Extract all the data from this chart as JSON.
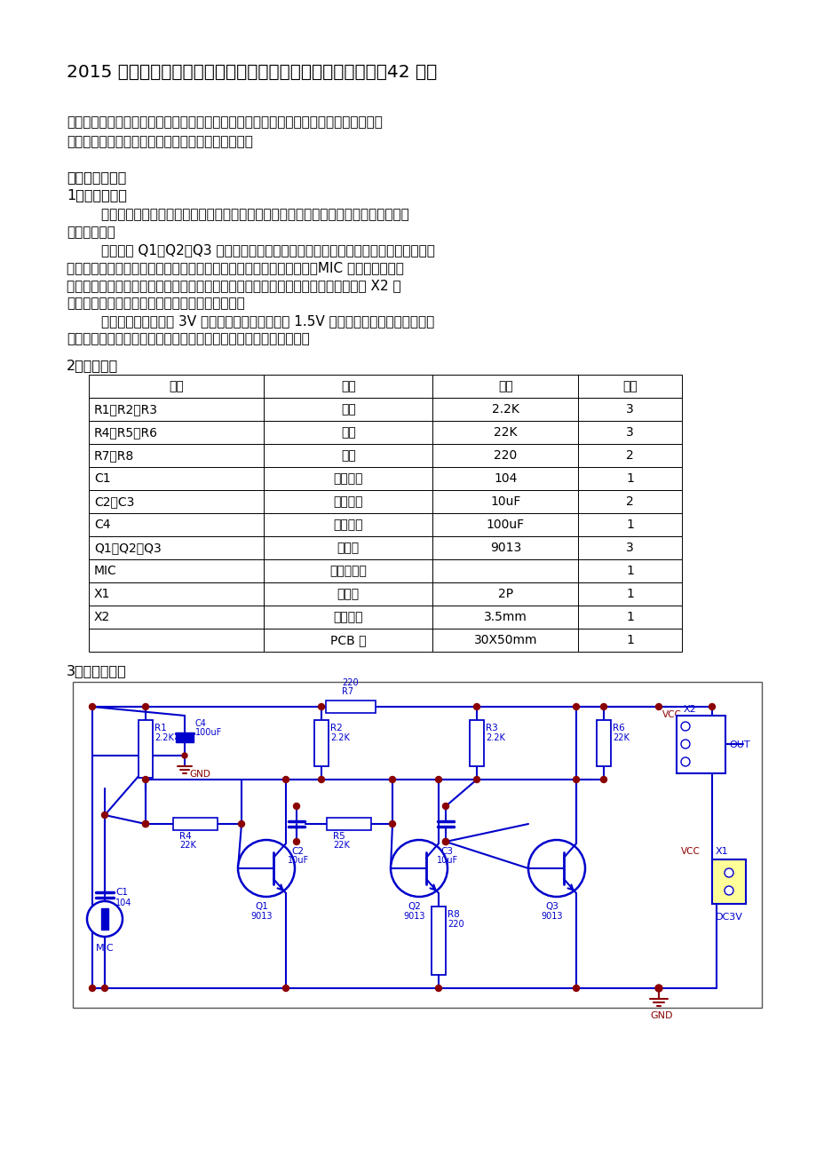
{
  "title": "2015 年《模拟电子技术》课程单元电路设计与制作参考电路（42 个）",
  "req_line1": "要求：按照下面提供的电路图，工作原理说明，元器件清单设计及制作单元电路，然后测",
  "req_line2": "试单元电路的性能，撰写单元电路设计与制作报告。",
  "sec1": "一、多级放大器",
  "sub1": "1、电路说明：",
  "p1a": "        多级放大器电路是把若干个单管放大电路串接起来，把信号经过多级放大，达到所需要",
  "p1b": "的输出要求。",
  "p2a": "        本电路由 Q1、Q2、Q3 组成三级音频放大电路，级与级之间采用电容耦合方式连接。",
  "p2b": "前两级是一种具有电压负反馈的偏置电路，能起到稳定工作点的作用。MIC 是驻极体话筒，",
  "p2c": "微弱的声音信号由话筒变成电信号，经过音频放大电路的多级放大，最后由耳机插座 X2 输",
  "p2d": "出，输出的信号由外接的耳机或扬声器发出声音。",
  "p3a": "        电路组装好后，外接 3V 直流电源（可以使用两节 1.5V 电池供电），对着驻极体话筒",
  "p3b": "说话，耳机里能听到宏亮的声音，可以当做助记器使用，效果很好。",
  "sub2": "2、元件清单",
  "table_headers": [
    "位号",
    "名称",
    "规格",
    "数量"
  ],
  "table_rows": [
    [
      "R1、R2、R3",
      "电阻",
      "2.2K",
      "3"
    ],
    [
      "R4、R5、R6",
      "电阻",
      "22K",
      "3"
    ],
    [
      "R7、R8",
      "电阻",
      "220",
      "2"
    ],
    [
      "C1",
      "瓷片电容",
      "104",
      "1"
    ],
    [
      "C2、C3",
      "电解电容",
      "10uF",
      "2"
    ],
    [
      "C4",
      "电解电容",
      "100uF",
      "1"
    ],
    [
      "Q1、Q2、Q3",
      "三极管",
      "9013",
      "3"
    ],
    [
      "MIC",
      "驻极体话筒",
      "",
      "1"
    ],
    [
      "X1",
      "接线座",
      "2P",
      "1"
    ],
    [
      "X2",
      "耳机插座",
      "3.5mm",
      "1"
    ],
    [
      "",
      "PCB 板",
      "30X50mm",
      "1"
    ]
  ],
  "sub3": "3、电路原理图",
  "BLUE": "#0000CC",
  "DKBLUE": "#00008B",
  "RED": "#8B0000"
}
